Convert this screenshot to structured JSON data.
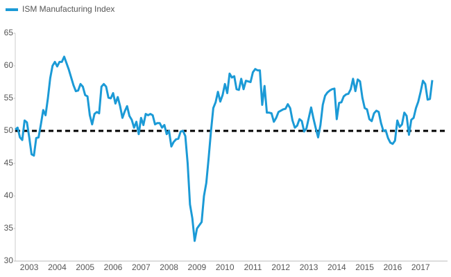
{
  "chart_data": {
    "type": "line",
    "categories": [
      null,
      null,
      null,
      null,
      null,
      null,
      "2003",
      null,
      null,
      null,
      null,
      null,
      null,
      null,
      null,
      null,
      null,
      null,
      "2004",
      null,
      null,
      null,
      null,
      null,
      null,
      null,
      null,
      null,
      null,
      null,
      "2005",
      null,
      null,
      null,
      null,
      null,
      null,
      null,
      null,
      null,
      null,
      null,
      "2006",
      null,
      null,
      null,
      null,
      null,
      null,
      null,
      null,
      null,
      null,
      null,
      "2007",
      null,
      null,
      null,
      null,
      null,
      null,
      null,
      null,
      null,
      null,
      null,
      "2008",
      null,
      null,
      null,
      null,
      null,
      null,
      null,
      null,
      null,
      null,
      null,
      "2009",
      null,
      null,
      null,
      null,
      null,
      null,
      null,
      null,
      null,
      null,
      null,
      "2010",
      null,
      null,
      null,
      null,
      null,
      null,
      null,
      null,
      null,
      null,
      null,
      "2011",
      null,
      null,
      null,
      null,
      null,
      null,
      null,
      null,
      null,
      null,
      null,
      "2012",
      null,
      null,
      null,
      null,
      null,
      null,
      null,
      null,
      null,
      null,
      null,
      "2013",
      null,
      null,
      null,
      null,
      null,
      null,
      null,
      null,
      null,
      null,
      null,
      "2014",
      null,
      null,
      null,
      null,
      null,
      null,
      null,
      null,
      null,
      null,
      null,
      "2015",
      null,
      null,
      null,
      null,
      null,
      null,
      null,
      null,
      null,
      null,
      null,
      "2016",
      null,
      null,
      null,
      null,
      null,
      null,
      null,
      null,
      null,
      null,
      null,
      "2017",
      null,
      null,
      null,
      null,
      null
    ],
    "series": [
      {
        "name": "ISM Manufacturing Index",
        "color": "#1b9ad6",
        "values": [
          50.2,
          50.5,
          49.0,
          48.6,
          51.6,
          51.3,
          49.0,
          46.4,
          46.2,
          48.9,
          49.0,
          51.0,
          53.2,
          52.4,
          55.0,
          58.1,
          60.0,
          60.6,
          59.9,
          60.6,
          60.6,
          61.4,
          60.4,
          59.4,
          58.2,
          57.0,
          56.1,
          56.2,
          57.2,
          56.8,
          55.5,
          55.3,
          52.4,
          51.0,
          52.6,
          52.9,
          52.7,
          56.8,
          57.2,
          56.8,
          55.1,
          55.0,
          55.8,
          54.2,
          55.2,
          53.8,
          52.0,
          53.0,
          53.8,
          52.3,
          51.7,
          50.5,
          51.4,
          49.5,
          52.0,
          50.9,
          52.6,
          52.4,
          52.6,
          52.4,
          51.0,
          51.2,
          51.2,
          50.5,
          50.9,
          49.5,
          50.0,
          47.6,
          48.3,
          48.7,
          48.8,
          49.9,
          50.0,
          49.2,
          45.0,
          38.7,
          36.6,
          33.1,
          35.0,
          35.5,
          36.0,
          40.0,
          42.0,
          45.8,
          49.9,
          53.5,
          54.4,
          56.0,
          54.5,
          55.5,
          57.2,
          55.8,
          58.8,
          58.2,
          58.4,
          56.4,
          56.3,
          58.0,
          56.4,
          57.7,
          57.6,
          57.5,
          59.0,
          59.5,
          59.3,
          59.3,
          54.0,
          56.9,
          52.8,
          52.8,
          52.7,
          51.4,
          52.0,
          52.9,
          53.1,
          53.3,
          53.4,
          54.1,
          53.5,
          51.6,
          50.5,
          50.8,
          51.8,
          51.5,
          49.9,
          50.4,
          52.0,
          53.6,
          51.9,
          50.4,
          49.0,
          50.9,
          54.0,
          55.4,
          55.9,
          56.2,
          56.4,
          56.5,
          51.8,
          54.3,
          54.4,
          55.3,
          55.6,
          55.7,
          56.4,
          58.0,
          56.1,
          57.9,
          57.6,
          55.1,
          53.5,
          53.3,
          51.8,
          51.5,
          52.7,
          53.1,
          52.9,
          51.2,
          50.0,
          50.1,
          48.9,
          48.2,
          48.0,
          48.5,
          51.6,
          50.6,
          51.0,
          52.8,
          52.3,
          49.4,
          51.7,
          52.0,
          53.5,
          54.5,
          56.0,
          57.7,
          57.2,
          54.8,
          54.9,
          57.8
        ]
      }
    ],
    "ylim": [
      30,
      65
    ],
    "yticks": [
      30,
      35,
      40,
      45,
      50,
      55,
      60,
      65
    ],
    "reference_line": 50,
    "legend": "top-left"
  }
}
